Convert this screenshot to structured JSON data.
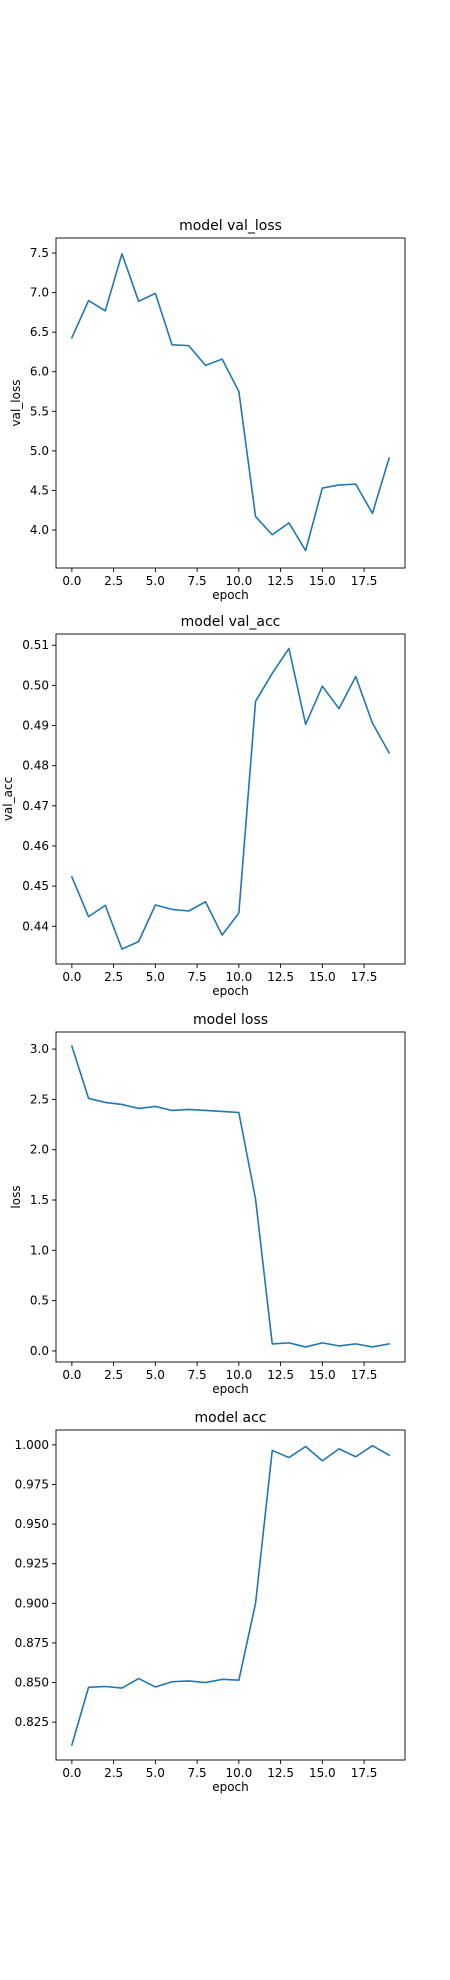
{
  "line_color": "#1f77b4",
  "chart_data": [
    {
      "type": "line",
      "title": "model val_loss",
      "xlabel": "epoch",
      "ylabel": "val_loss",
      "xlim": [
        -0.95,
        19.95
      ],
      "ylim": [
        3.52,
        7.69
      ],
      "xticks": [
        0,
        2.5,
        5,
        7.5,
        10,
        12.5,
        15,
        17.5
      ],
      "xtick_labels": [
        "0.0",
        "2.5",
        "5.0",
        "7.5",
        "10.0",
        "12.5",
        "15.0",
        "17.5"
      ],
      "yticks": [
        4.0,
        4.5,
        5.0,
        5.5,
        6.0,
        6.5,
        7.0,
        7.5
      ],
      "ytick_labels": [
        "4.0",
        "4.5",
        "5.0",
        "5.5",
        "6.0",
        "6.5",
        "7.0",
        "7.5"
      ],
      "grid": false,
      "legend": "none",
      "x": [
        0,
        1,
        2,
        3,
        4,
        5,
        6,
        7,
        8,
        9,
        10,
        11,
        12,
        13,
        14,
        15,
        16,
        17,
        18,
        19
      ],
      "y": [
        6.43,
        6.9,
        6.77,
        7.49,
        6.89,
        6.99,
        6.34,
        6.33,
        6.08,
        6.16,
        5.75,
        4.17,
        3.94,
        4.09,
        3.74,
        4.53,
        4.57,
        4.58,
        4.21,
        4.91
      ]
    },
    {
      "type": "line",
      "title": "model val_acc",
      "xlabel": "epoch",
      "ylabel": "val_acc",
      "xlim": [
        -0.95,
        19.95
      ],
      "ylim": [
        0.4306,
        0.5128
      ],
      "xticks": [
        0,
        2.5,
        5,
        7.5,
        10,
        12.5,
        15,
        17.5
      ],
      "xtick_labels": [
        "0.0",
        "2.5",
        "5.0",
        "7.5",
        "10.0",
        "12.5",
        "15.0",
        "17.5"
      ],
      "yticks": [
        0.44,
        0.45,
        0.46,
        0.47,
        0.48,
        0.49,
        0.5,
        0.51
      ],
      "ytick_labels": [
        "0.44",
        "0.45",
        "0.46",
        "0.47",
        "0.48",
        "0.49",
        "0.50",
        "0.51"
      ],
      "grid": false,
      "legend": "none",
      "x": [
        0,
        1,
        2,
        3,
        4,
        5,
        6,
        7,
        8,
        9,
        10,
        11,
        12,
        13,
        14,
        15,
        16,
        17,
        18,
        19
      ],
      "y": [
        0.4523,
        0.4424,
        0.4452,
        0.4343,
        0.4362,
        0.4453,
        0.4442,
        0.4438,
        0.4461,
        0.4378,
        0.4433,
        0.496,
        0.503,
        0.5092,
        0.4903,
        0.4998,
        0.4942,
        0.5022,
        0.4906,
        0.4832
      ]
    },
    {
      "type": "line",
      "title": "model loss",
      "xlabel": "epoch",
      "ylabel": "loss",
      "xlim": [
        -0.95,
        19.95
      ],
      "ylim": [
        -0.11,
        3.17
      ],
      "xticks": [
        0,
        2.5,
        5,
        7.5,
        10,
        12.5,
        15,
        17.5
      ],
      "xtick_labels": [
        "0.0",
        "2.5",
        "5.0",
        "7.5",
        "10.0",
        "12.5",
        "15.0",
        "17.5"
      ],
      "yticks": [
        0.0,
        0.5,
        1.0,
        1.5,
        2.0,
        2.5,
        3.0
      ],
      "ytick_labels": [
        "0.0",
        "0.5",
        "1.0",
        "1.5",
        "2.0",
        "2.5",
        "3.0"
      ],
      "grid": false,
      "legend": "none",
      "x": [
        0,
        1,
        2,
        3,
        4,
        5,
        6,
        7,
        8,
        9,
        10,
        11,
        12,
        13,
        14,
        15,
        16,
        17,
        18,
        19
      ],
      "y": [
        3.03,
        2.51,
        2.47,
        2.45,
        2.41,
        2.43,
        2.39,
        2.4,
        2.39,
        2.38,
        2.37,
        1.51,
        0.07,
        0.08,
        0.04,
        0.08,
        0.05,
        0.07,
        0.04,
        0.07
      ]
    },
    {
      "type": "line",
      "title": "model acc",
      "xlabel": "epoch",
      "ylabel": "acc",
      "xlim": [
        -0.95,
        19.95
      ],
      "ylim": [
        0.8011,
        1.0094
      ],
      "xticks": [
        0,
        2.5,
        5,
        7.5,
        10,
        12.5,
        15,
        17.5
      ],
      "xtick_labels": [
        "0.0",
        "2.5",
        "5.0",
        "7.5",
        "10.0",
        "12.5",
        "15.0",
        "17.5"
      ],
      "yticks": [
        0.825,
        0.85,
        0.875,
        0.9,
        0.925,
        0.95,
        0.975,
        1.0
      ],
      "ytick_labels": [
        "0.825",
        "0.850",
        "0.875",
        "0.900",
        "0.925",
        "0.950",
        "0.975",
        "1.000"
      ],
      "grid": false,
      "legend": "none",
      "x": [
        0,
        1,
        2,
        3,
        4,
        5,
        6,
        7,
        8,
        9,
        10,
        11,
        12,
        13,
        14,
        15,
        16,
        17,
        18,
        19
      ],
      "y": [
        0.8106,
        0.847,
        0.8475,
        0.8465,
        0.8525,
        0.8472,
        0.8505,
        0.851,
        0.85,
        0.852,
        0.8515,
        0.9,
        0.9965,
        0.992,
        0.999,
        0.99,
        0.9975,
        0.9925,
        0.9995,
        0.9935
      ]
    }
  ]
}
